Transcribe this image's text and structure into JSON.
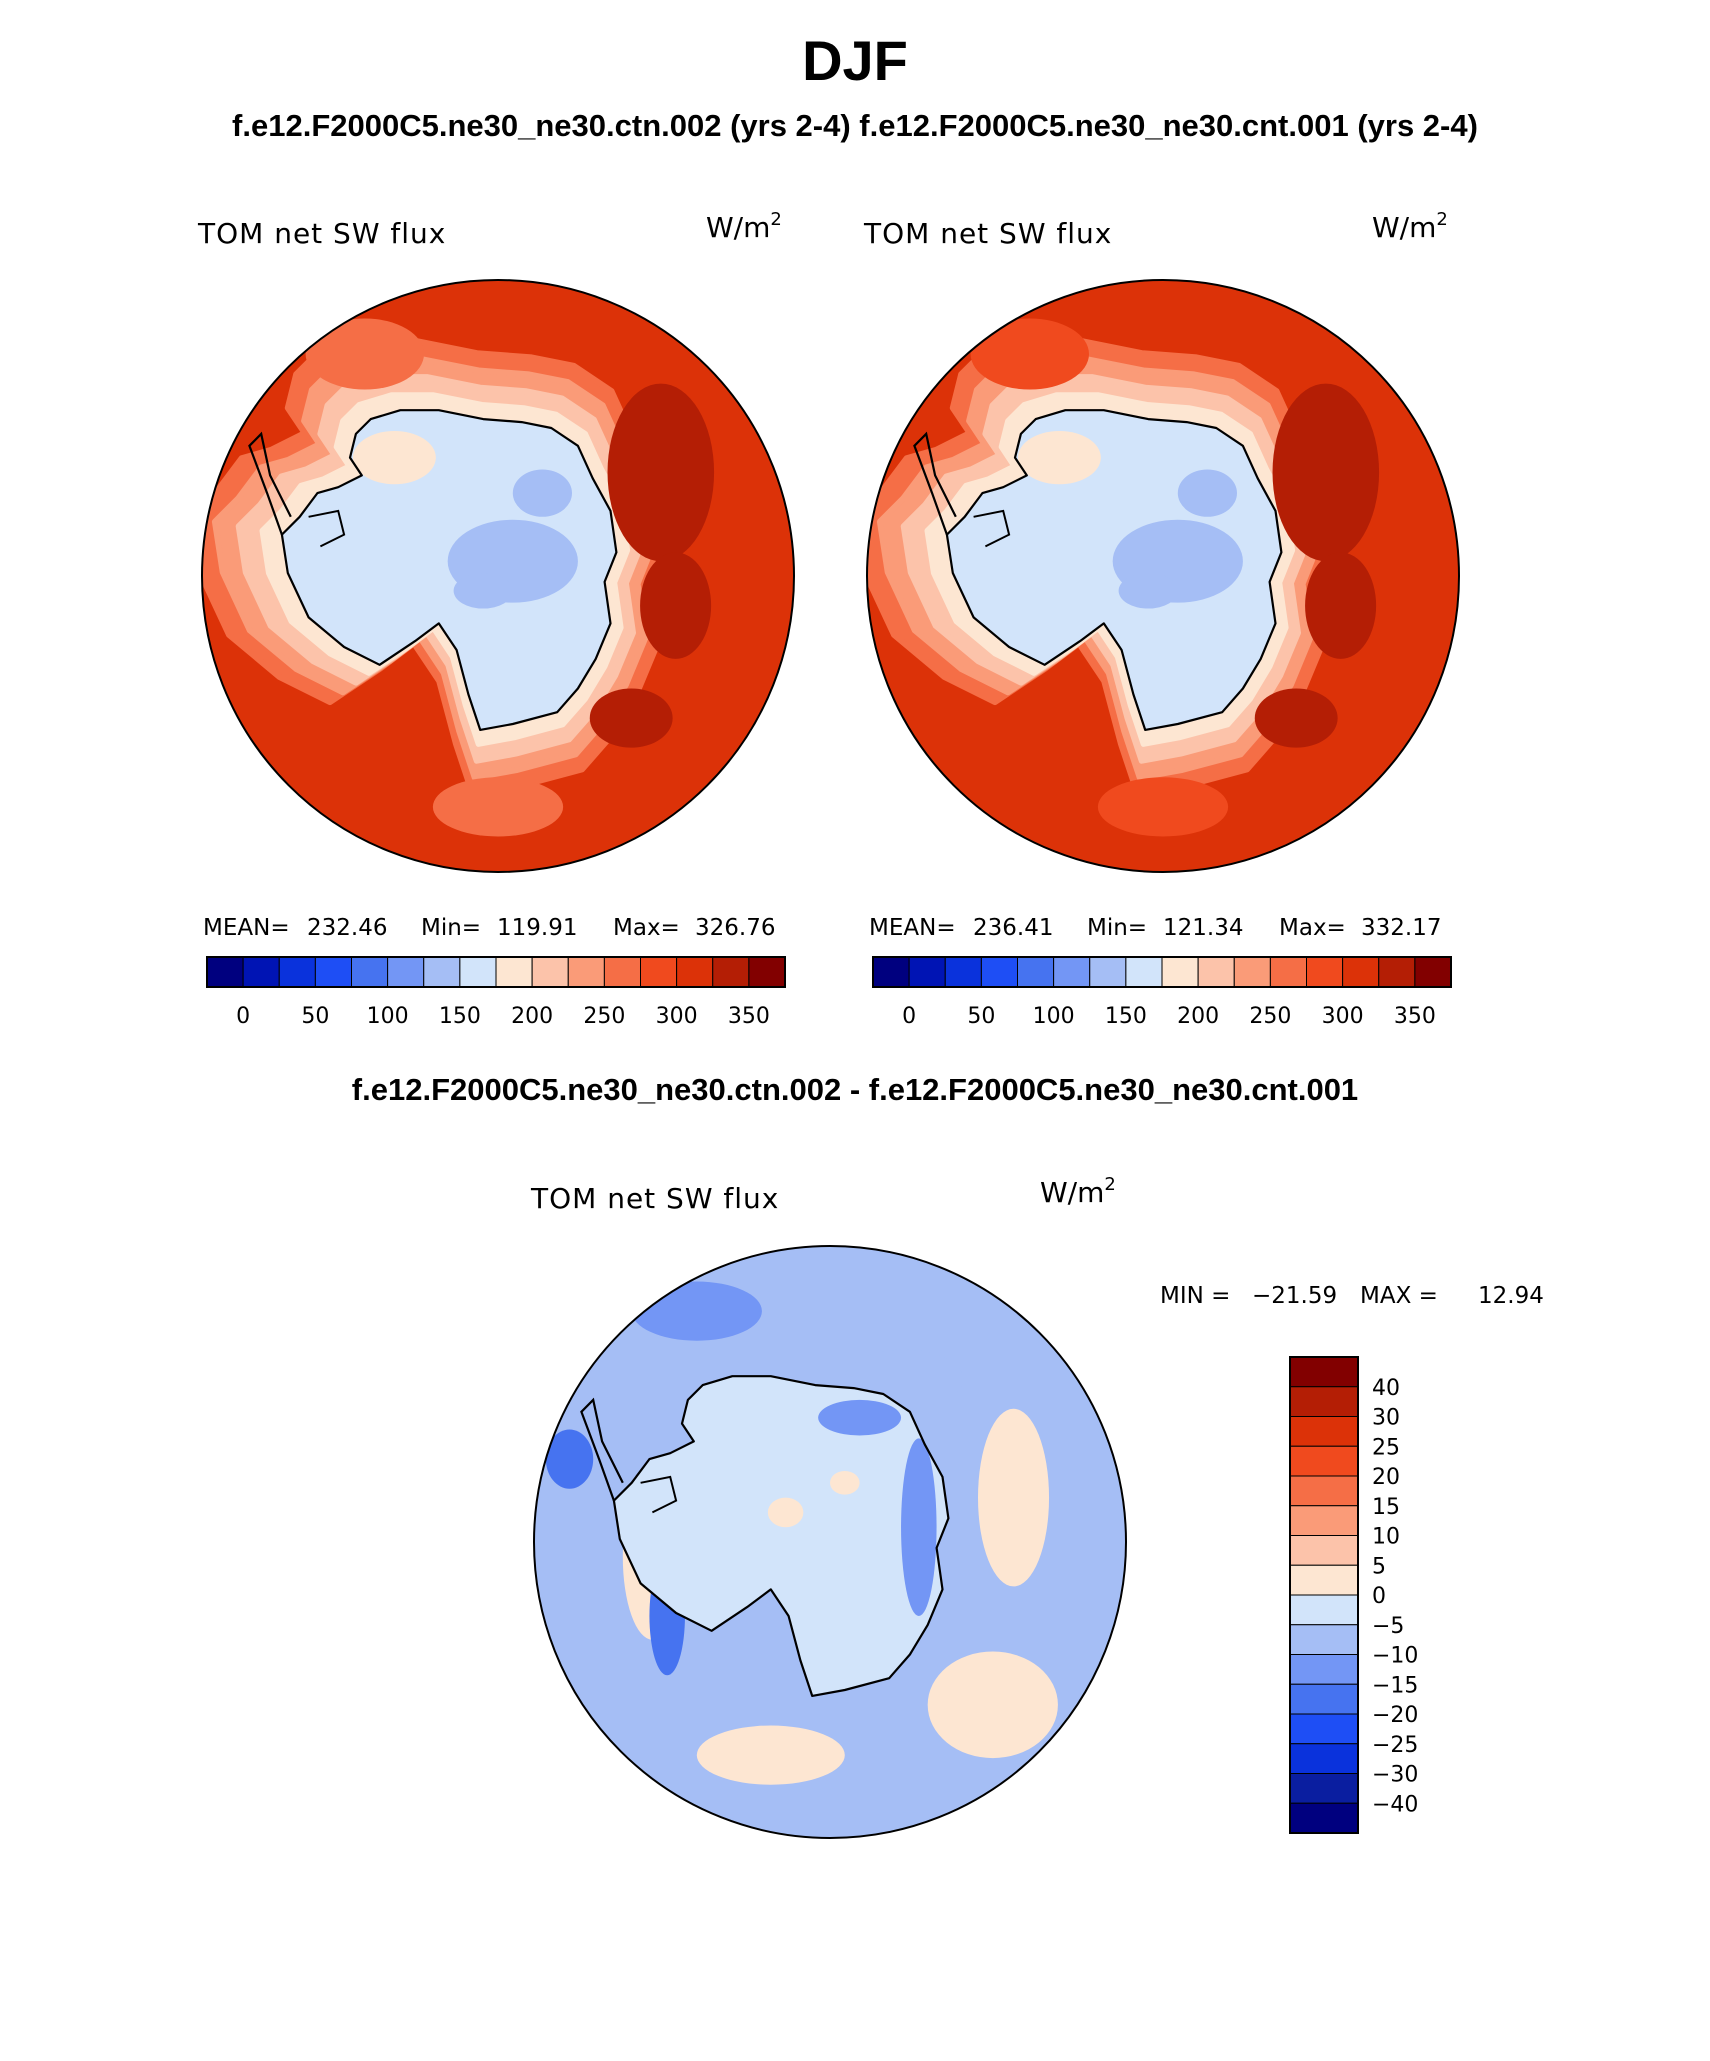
{
  "page": {
    "title": "DJF",
    "subtitle": "f.e12.F2000C5.ne30_ne30.ctn.002 (yrs 2-4) f.e12.F2000C5.ne30_ne30.cnt.001 (yrs 2-4)",
    "diff_title": "f.e12.F2000C5.ne30_ne30.ctn.002 - f.e12.F2000C5.ne30_ne30.cnt.001"
  },
  "colors": {
    "outline": "#000000",
    "field_levels": [
      "#00007f",
      "#0014b4",
      "#0a32dc",
      "#1e4ef5",
      "#4673f0",
      "#7396f5",
      "#a5bef5",
      "#d2e4fa",
      "#fde6d2",
      "#fcc3aa",
      "#fa9b78",
      "#f56e46",
      "#f04a1e",
      "#dc3208",
      "#b41e05",
      "#820000"
    ],
    "diff_levels": [
      "#00007f",
      "#0a1ea0",
      "#0a32dc",
      "#1e4ef5",
      "#4673f0",
      "#7396f5",
      "#a5bef5",
      "#d2e4fa",
      "#fde6d2",
      "#fcc3aa",
      "#fa9b78",
      "#f56e46",
      "#f04a1e",
      "#dc3208",
      "#b41e05",
      "#820000"
    ]
  },
  "chart_data": [
    {
      "type": "heatmap",
      "projection": "south polar stereographic",
      "variable": "TOM net SW flux",
      "units_base": "W/m",
      "units_exp": "2",
      "stats": {
        "mean_label": "MEAN=",
        "mean": "232.46",
        "min_label": "Min=",
        "min": "119.91",
        "max_label": "Max=",
        "max": "326.76"
      },
      "colorbar": {
        "orientation": "horizontal",
        "ticks": [
          "0",
          "50",
          "100",
          "150",
          "200",
          "250",
          "300",
          "350"
        ]
      },
      "field": {
        "land": 150,
        "ocean": 305,
        "ring": 215,
        "cold_patch": 130
      }
    },
    {
      "type": "heatmap",
      "projection": "south polar stereographic",
      "variable": "TOM net SW flux",
      "units_base": "W/m",
      "units_exp": "2",
      "stats": {
        "mean_label": "MEAN=",
        "mean": "236.41",
        "min_label": "Min=",
        "min": "121.34",
        "max_label": "Max=",
        "max": "332.17"
      },
      "colorbar": {
        "orientation": "horizontal",
        "ticks": [
          "0",
          "50",
          "100",
          "150",
          "200",
          "250",
          "300",
          "350"
        ]
      },
      "field": {
        "land": 150,
        "ocean": 310,
        "ring": 218,
        "cold_patch": 132
      }
    },
    {
      "type": "heatmap",
      "projection": "south polar stereographic",
      "variable": "TOM net SW flux",
      "units_base": "W/m",
      "units_exp": "2",
      "stats": {
        "min_label": "MIN =",
        "min": "−21.59",
        "max_label": "MAX =",
        "max": "12.94"
      },
      "colorbar": {
        "orientation": "vertical",
        "ticks": [
          "40",
          "30",
          "25",
          "20",
          "15",
          "10",
          "5",
          "0",
          "−5",
          "−10",
          "−15",
          "−20",
          "−25",
          "−30",
          "−40"
        ]
      },
      "field": {
        "land": -3,
        "ocean": -7,
        "warm_patch": 3
      }
    }
  ]
}
